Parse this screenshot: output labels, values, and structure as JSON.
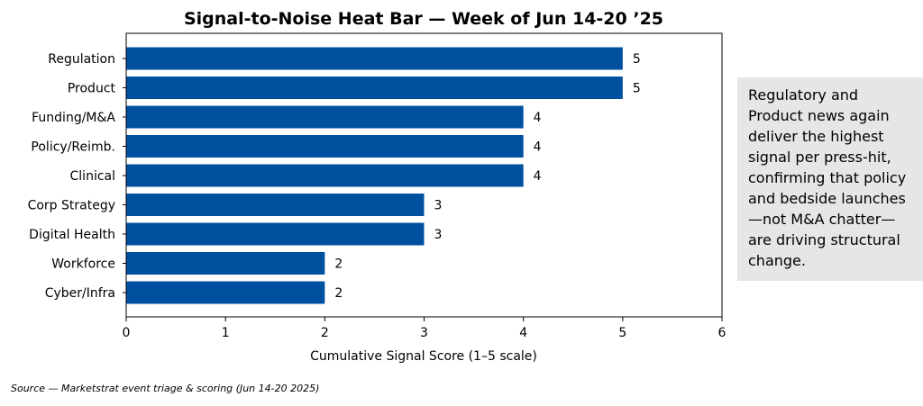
{
  "chart_data": {
    "type": "bar",
    "orientation": "horizontal",
    "title": "Signal-to-Noise Heat Bar — Week of Jun 14-20 ’25",
    "categories": [
      "Regulation",
      "Product",
      "Funding/M&A",
      "Policy/Reimb.",
      "Clinical",
      "Corp Strategy",
      "Digital Health",
      "Workforce",
      "Cyber/Infra"
    ],
    "values": [
      5,
      5,
      4,
      4,
      4,
      3,
      3,
      2,
      2
    ],
    "xlabel": "Cumulative Signal Score (1–5 scale)",
    "ylabel": "",
    "xlim": [
      0,
      6
    ],
    "xticks": [
      0,
      1,
      2,
      3,
      4,
      5,
      6
    ],
    "bar_color": "#0050a0",
    "data_labels": true,
    "grid": false
  },
  "annotation": {
    "text": "Regulatory and Product news again deliver the highest signal per press-hit, confirming that policy and bedside launches—not M&A chatter—are driving structural change."
  },
  "source": {
    "text": "Source — Marketstrat event triage & scoring (Jun 14-20 2025)"
  }
}
